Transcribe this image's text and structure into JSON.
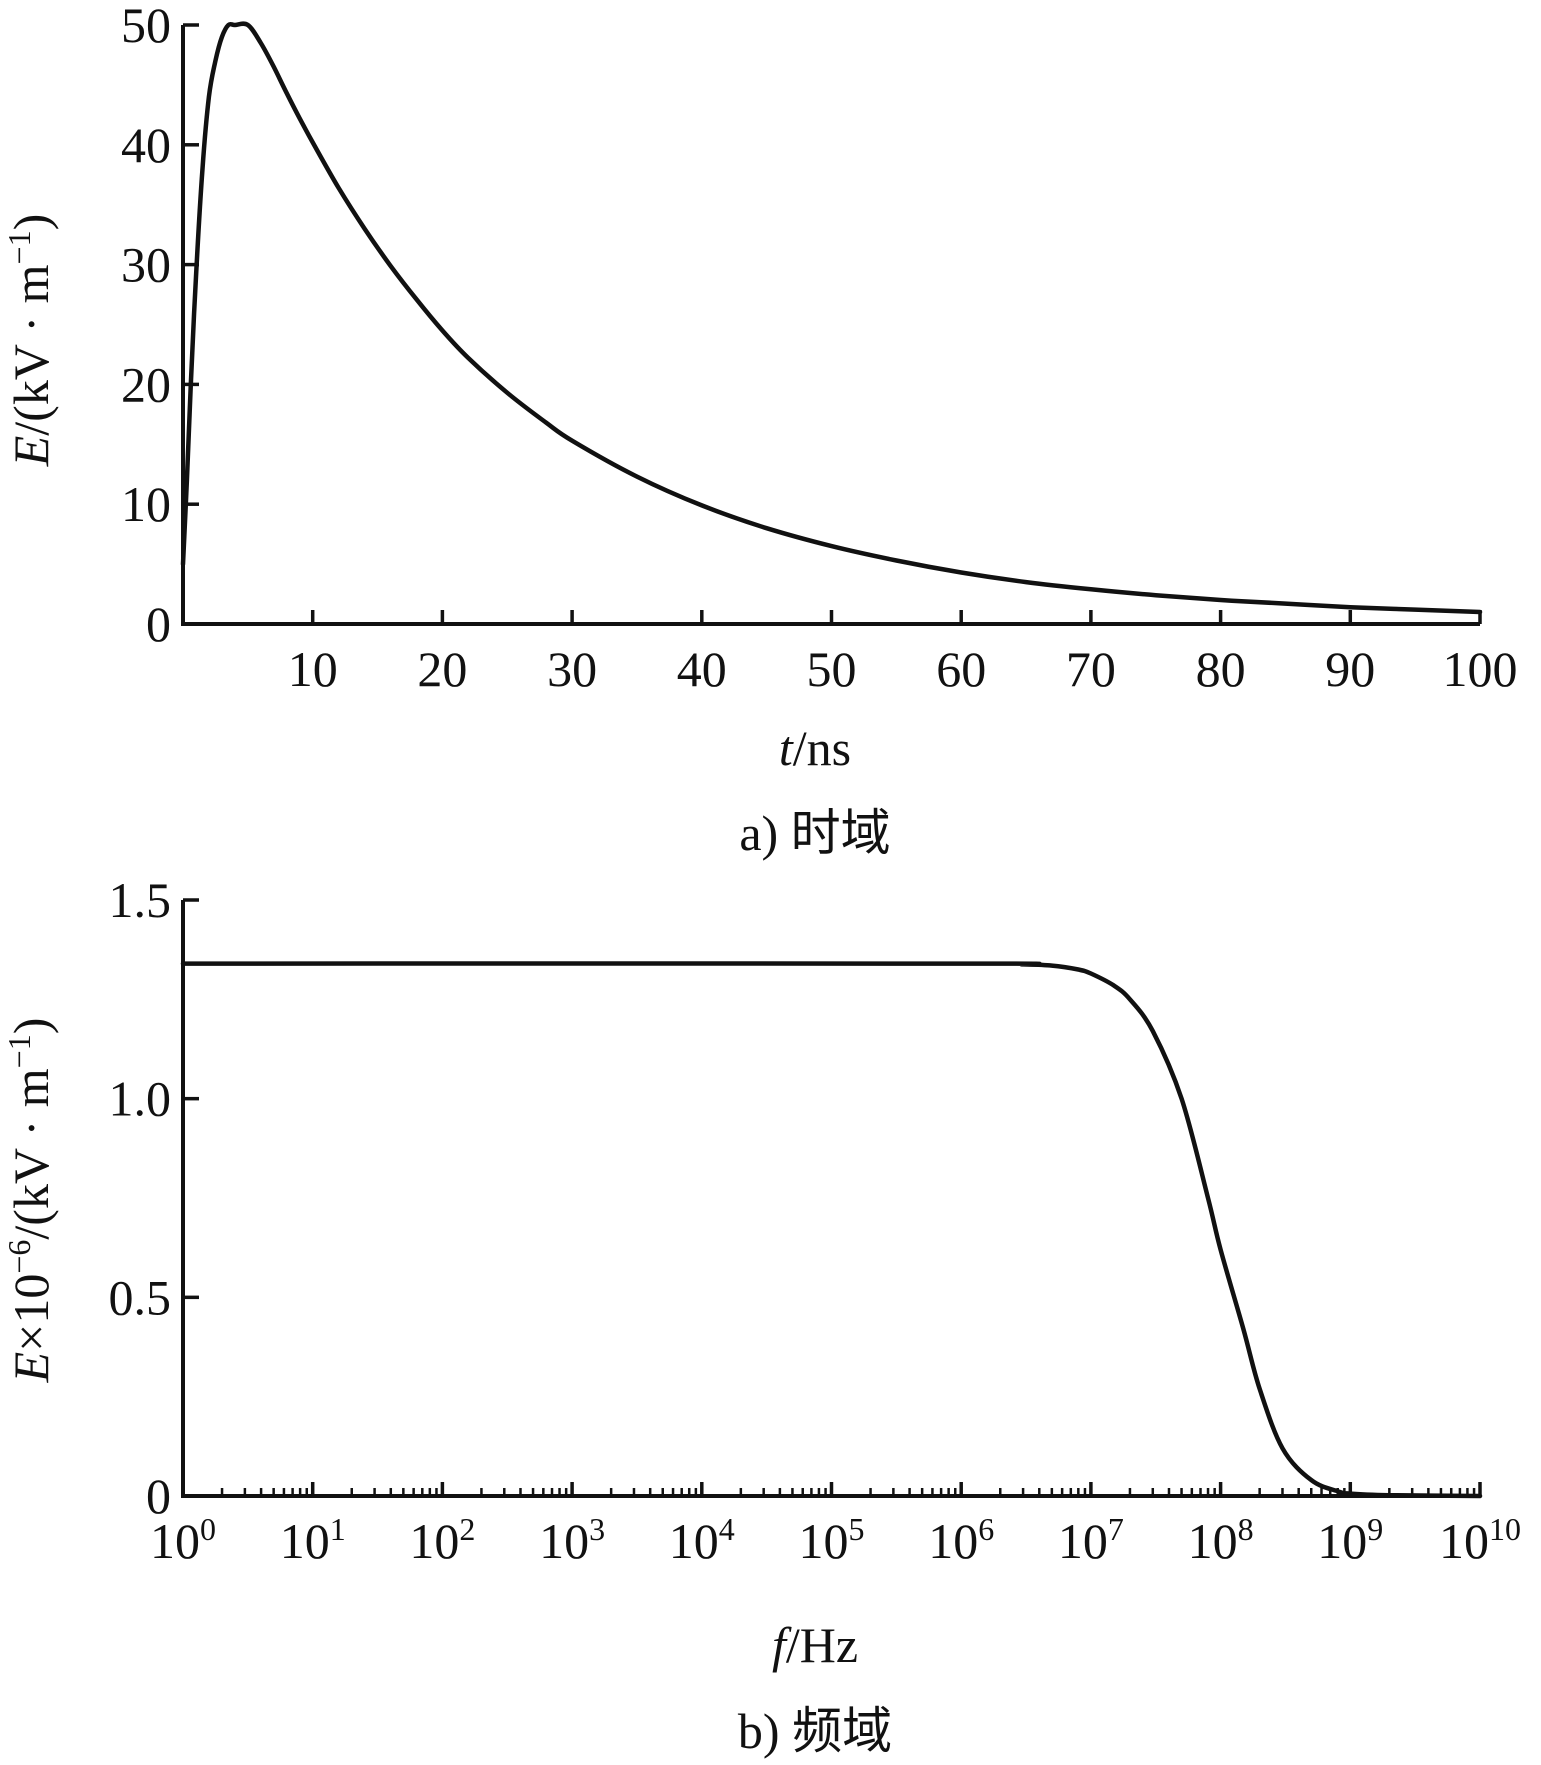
{
  "chart_data": [
    {
      "type": "line",
      "caption": "a) 时域",
      "xlabel": {
        "var": "t",
        "unit": "/ns"
      },
      "ylabel": {
        "var": "E",
        "unit": "/(kV · m",
        "exp": "−1",
        "close": ")"
      },
      "xlim": [
        0,
        100
      ],
      "ylim": [
        0,
        50
      ],
      "xticks": [
        10,
        20,
        30,
        40,
        50,
        60,
        70,
        80,
        90,
        100
      ],
      "xtick_labels": [
        "10",
        "20",
        "30",
        "40",
        "50",
        "60",
        "70",
        "80",
        "90",
        "100"
      ],
      "yticks": [
        0,
        10,
        20,
        30,
        40,
        50
      ],
      "ytick_labels": [
        "0",
        "10",
        "20",
        "30",
        "40",
        "50"
      ],
      "grid": false,
      "series": [
        {
          "x": [
            0,
            0.3,
            0.6,
            1,
            1.5,
            2,
            2.5,
            3,
            3.5,
            4,
            5,
            6,
            7,
            8,
            9,
            10,
            12,
            14,
            16,
            18,
            20,
            22,
            25,
            28,
            30,
            35,
            40,
            45,
            50,
            55,
            60,
            65,
            70,
            75,
            80,
            85,
            90,
            95,
            100
          ],
          "y": [
            5,
            12,
            20,
            29,
            38,
            44,
            47,
            49,
            50,
            50,
            50,
            48.5,
            46.5,
            44.3,
            42.2,
            40.2,
            36.4,
            33.0,
            29.9,
            27.1,
            24.5,
            22.2,
            19.3,
            16.8,
            15.3,
            12.3,
            9.9,
            8.0,
            6.5,
            5.3,
            4.3,
            3.5,
            2.9,
            2.4,
            2.0,
            1.7,
            1.4,
            1.2,
            1.0
          ]
        }
      ]
    },
    {
      "type": "line",
      "caption": "b) 频域",
      "xlabel": {
        "var": "f",
        "unit": "/Hz"
      },
      "ylabel": {
        "var": "E",
        "mid": "×10",
        "exp1": "−6",
        "unit": "/(kV · m",
        "exp2": "−1",
        "close": ")"
      },
      "xscale": "log",
      "xlim": [
        1,
        10000000000
      ],
      "ylim": [
        0,
        1.5
      ],
      "xticks": [
        1,
        10,
        100,
        1000,
        10000,
        100000,
        1000000,
        10000000,
        100000000,
        1000000000,
        10000000000
      ],
      "xtick_labels": [
        {
          "base": "10",
          "exp": "0"
        },
        {
          "base": "10",
          "exp": "1"
        },
        {
          "base": "10",
          "exp": "2"
        },
        {
          "base": "10",
          "exp": "3"
        },
        {
          "base": "10",
          "exp": "4"
        },
        {
          "base": "10",
          "exp": "5"
        },
        {
          "base": "10",
          "exp": "6"
        },
        {
          "base": "10",
          "exp": "7"
        },
        {
          "base": "10",
          "exp": "8"
        },
        {
          "base": "10",
          "exp": "9"
        },
        {
          "base": "10",
          "exp": "10"
        }
      ],
      "yticks": [
        0,
        0.5,
        1.0,
        1.5
      ],
      "ytick_labels": [
        "0",
        "0.5",
        "1.0",
        "1.5"
      ],
      "grid": false,
      "series": [
        {
          "x": [
            1,
            1000000,
            3000000,
            5000000,
            8000000,
            10000000,
            15000000,
            20000000,
            30000000,
            50000000,
            80000000,
            100000000,
            150000000,
            200000000,
            300000000,
            500000000,
            800000000,
            1000000000,
            2000000000,
            10000000000
          ],
          "y": [
            1.34,
            1.34,
            1.338,
            1.335,
            1.325,
            1.315,
            1.285,
            1.25,
            1.17,
            1.0,
            0.75,
            0.62,
            0.42,
            0.27,
            0.12,
            0.04,
            0.012,
            0.006,
            0.002,
            0.0
          ]
        }
      ]
    }
  ]
}
